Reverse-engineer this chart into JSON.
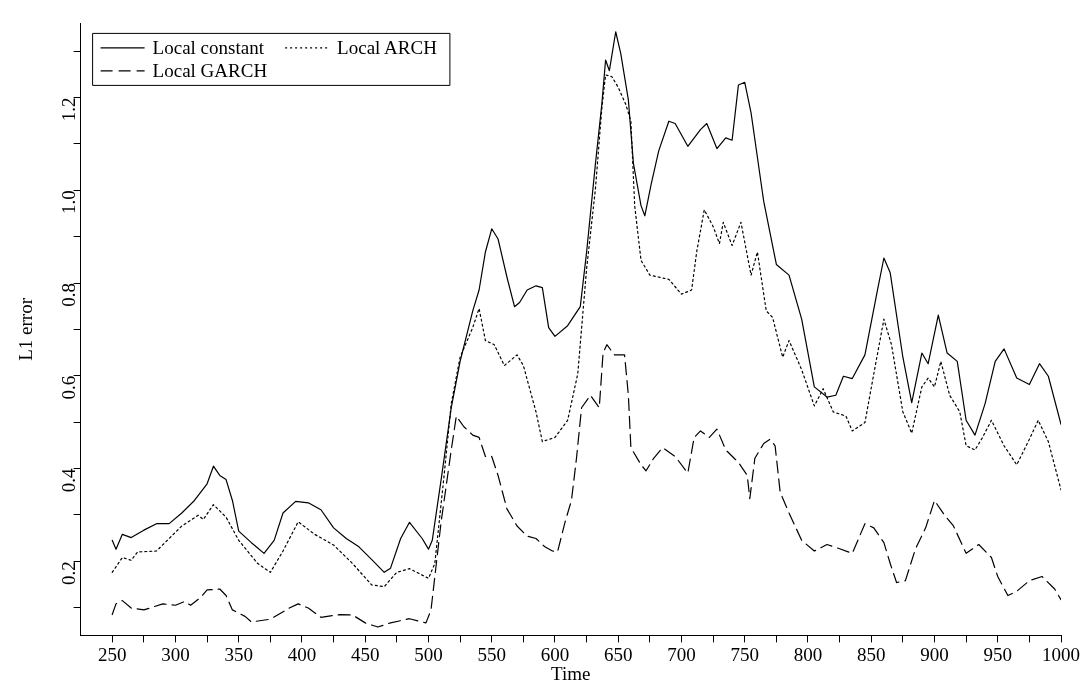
{
  "chart_data": {
    "type": "line",
    "xlabel": "Time",
    "ylabel": "L1 error",
    "xlim": [
      225,
      1000
    ],
    "ylim": [
      0.04,
      1.36
    ],
    "xticks": [
      250,
      {
        "value": 275,
        "label": null
      },
      300,
      {
        "value": 325,
        "label": null
      },
      350,
      {
        "value": 375,
        "label": null
      },
      400,
      {
        "value": 425,
        "label": null
      },
      450,
      {
        "value": 475,
        "label": null
      },
      500,
      {
        "value": 525,
        "label": null
      },
      550,
      {
        "value": 575,
        "label": null
      },
      600,
      {
        "value": 625,
        "label": null
      },
      650,
      {
        "value": 675,
        "label": null
      },
      700,
      {
        "value": 725,
        "label": null
      },
      750,
      {
        "value": 775,
        "label": null
      },
      800,
      {
        "value": 825,
        "label": null
      },
      850,
      {
        "value": 875,
        "label": null
      },
      900,
      {
        "value": 925,
        "label": null
      },
      950,
      {
        "value": 975,
        "label": null
      },
      1000
    ],
    "yticks": [
      {
        "value": 0.1,
        "label": null
      },
      0.2,
      {
        "value": 0.3,
        "label": null
      },
      0.4,
      {
        "value": 0.5,
        "label": null
      },
      0.6,
      {
        "value": 0.7,
        "label": null
      },
      0.8,
      {
        "value": 0.9,
        "label": null
      },
      {
        "value": 1,
        "label": "1.0"
      },
      {
        "value": 1.1,
        "label": null
      },
      1.2,
      {
        "value": 1.3,
        "label": null
      }
    ],
    "grid": false,
    "legend": "top left",
    "marker": "none",
    "series": [
      {
        "name": "Local constant",
        "color": "#000000",
        "line_style": "solid",
        "x": [
          250,
          253,
          258,
          265,
          275,
          285,
          295,
          305,
          315,
          325,
          330,
          335,
          340,
          345,
          350,
          360,
          370,
          378,
          385,
          395,
          405,
          415,
          425,
          435,
          445,
          455,
          465,
          470,
          478,
          485,
          495,
          500,
          503,
          510,
          518,
          525,
          535,
          540,
          545,
          550,
          555,
          562,
          568,
          572,
          578,
          585,
          590,
          595,
          600,
          610,
          620,
          625,
          632,
          637,
          640,
          643,
          648,
          652,
          658,
          662,
          668,
          671,
          676,
          682,
          690,
          695,
          705,
          715,
          720,
          728,
          735,
          740,
          745,
          750,
          755,
          765,
          775,
          785,
          795,
          805,
          815,
          822,
          828,
          835,
          845,
          855,
          860,
          865,
          875,
          882,
          890,
          895,
          903,
          910,
          918,
          925,
          932,
          940,
          948,
          955,
          965,
          975,
          983,
          990,
          1000
        ],
        "values": [
          0.245,
          0.226,
          0.258,
          0.251,
          0.267,
          0.281,
          0.281,
          0.304,
          0.331,
          0.367,
          0.405,
          0.385,
          0.376,
          0.331,
          0.265,
          0.24,
          0.217,
          0.245,
          0.304,
          0.329,
          0.326,
          0.311,
          0.272,
          0.249,
          0.231,
          0.204,
          0.176,
          0.185,
          0.249,
          0.284,
          0.249,
          0.226,
          0.245,
          0.376,
          0.531,
          0.631,
          0.74,
          0.785,
          0.867,
          0.917,
          0.895,
          0.813,
          0.749,
          0.758,
          0.785,
          0.794,
          0.79,
          0.704,
          0.685,
          0.708,
          0.749,
          0.867,
          1.058,
          1.185,
          1.281,
          1.258,
          1.342,
          1.295,
          1.195,
          1.058,
          0.967,
          0.945,
          1.013,
          1.085,
          1.149,
          1.144,
          1.095,
          1.131,
          1.144,
          1.09,
          1.113,
          1.108,
          1.227,
          1.233,
          1.167,
          0.976,
          0.84,
          0.817,
          0.722,
          0.576,
          0.554,
          0.558,
          0.599,
          0.594,
          0.645,
          0.786,
          0.854,
          0.822,
          0.64,
          0.542,
          0.649,
          0.626,
          0.731,
          0.649,
          0.631,
          0.504,
          0.472,
          0.54,
          0.631,
          0.658,
          0.595,
          0.581,
          0.626,
          0.599,
          0.495
        ]
      },
      {
        "name": "Local ARCH",
        "color": "#000000",
        "line_style": "dotted",
        "x": [
          250,
          258,
          265,
          270,
          285,
          295,
          305,
          318,
          322,
          330,
          340,
          350,
          365,
          375,
          385,
          397,
          410,
          425,
          440,
          455,
          465,
          475,
          485,
          500,
          505,
          512,
          518,
          525,
          535,
          540,
          545,
          552,
          560,
          570,
          575,
          585,
          590,
          600,
          610,
          618,
          625,
          632,
          637,
          640,
          645,
          650,
          656,
          660,
          663,
          668,
          675,
          690,
          700,
          708,
          712,
          718,
          725,
          730,
          733,
          740,
          747,
          755,
          760,
          767,
          772,
          780,
          785,
          795,
          805,
          812,
          820,
          830,
          835,
          845,
          852,
          860,
          866,
          875,
          882,
          890,
          895,
          900,
          905,
          912,
          920,
          925,
          932,
          938,
          945,
          955,
          965,
          975,
          982,
          990,
          1000
        ],
        "values": [
          0.176,
          0.208,
          0.202,
          0.22,
          0.222,
          0.249,
          0.276,
          0.299,
          0.29,
          0.322,
          0.295,
          0.245,
          0.195,
          0.176,
          0.222,
          0.285,
          0.258,
          0.235,
          0.195,
          0.149,
          0.145,
          0.176,
          0.184,
          0.163,
          0.195,
          0.376,
          0.54,
          0.64,
          0.704,
          0.745,
          0.676,
          0.667,
          0.622,
          0.645,
          0.622,
          0.522,
          0.458,
          0.467,
          0.504,
          0.604,
          0.831,
          1.004,
          1.176,
          1.249,
          1.245,
          1.222,
          1.185,
          1.149,
          0.967,
          0.849,
          0.817,
          0.808,
          0.776,
          0.785,
          0.867,
          0.958,
          0.922,
          0.885,
          0.931,
          0.881,
          0.931,
          0.817,
          0.867,
          0.74,
          0.726,
          0.64,
          0.676,
          0.613,
          0.535,
          0.572,
          0.522,
          0.513,
          0.481,
          0.499,
          0.604,
          0.722,
          0.667,
          0.522,
          0.476,
          0.576,
          0.595,
          0.576,
          0.631,
          0.558,
          0.522,
          0.449,
          0.44,
          0.467,
          0.504,
          0.449,
          0.408,
          0.463,
          0.504,
          0.458,
          0.354
        ]
      },
      {
        "name": "Local GARCH",
        "color": "#000000",
        "line_style": "dashed",
        "x": [
          250,
          253,
          258,
          265,
          275,
          290,
          300,
          307,
          312,
          320,
          325,
          335,
          340,
          345,
          355,
          360,
          375,
          390,
          397,
          405,
          415,
          430,
          440,
          450,
          460,
          470,
          485,
          498,
          502,
          510,
          518,
          522,
          528,
          535,
          540,
          545,
          550,
          555,
          562,
          570,
          578,
          585,
          592,
          598,
          602,
          608,
          613,
          617,
          621,
          628,
          635,
          638,
          641,
          647,
          655,
          658,
          660,
          668,
          672,
          678,
          685,
          695,
          705,
          710,
          715,
          722,
          728,
          735,
          745,
          752,
          754,
          758,
          765,
          770,
          774,
          778,
          785,
          795,
          805,
          815,
          825,
          835,
          845,
          852,
          860,
          865,
          870,
          877,
          885,
          893,
          900,
          908,
          915,
          925,
          935,
          945,
          950,
          958,
          965,
          975,
          985,
          995,
          1000
        ],
        "values": [
          0.085,
          0.108,
          0.115,
          0.099,
          0.095,
          0.108,
          0.105,
          0.113,
          0.105,
          0.122,
          0.138,
          0.14,
          0.126,
          0.095,
          0.081,
          0.069,
          0.075,
          0.099,
          0.108,
          0.099,
          0.079,
          0.085,
          0.084,
          0.067,
          0.058,
          0.067,
          0.076,
          0.067,
          0.095,
          0.285,
          0.44,
          0.513,
          0.49,
          0.472,
          0.467,
          0.426,
          0.426,
          0.385,
          0.313,
          0.276,
          0.254,
          0.249,
          0.231,
          0.222,
          0.22,
          0.285,
          0.331,
          0.422,
          0.531,
          0.558,
          0.531,
          0.649,
          0.667,
          0.645,
          0.645,
          0.558,
          0.445,
          0.408,
          0.395,
          0.422,
          0.445,
          0.426,
          0.39,
          0.467,
          0.481,
          0.467,
          0.485,
          0.44,
          0.413,
          0.385,
          0.335,
          0.422,
          0.454,
          0.463,
          0.449,
          0.349,
          0.304,
          0.245,
          0.222,
          0.236,
          0.227,
          0.217,
          0.281,
          0.272,
          0.24,
          0.195,
          0.154,
          0.158,
          0.227,
          0.272,
          0.331,
          0.299,
          0.276,
          0.217,
          0.236,
          0.208,
          0.167,
          0.126,
          0.135,
          0.158,
          0.167,
          0.14,
          0.117
        ]
      }
    ]
  }
}
